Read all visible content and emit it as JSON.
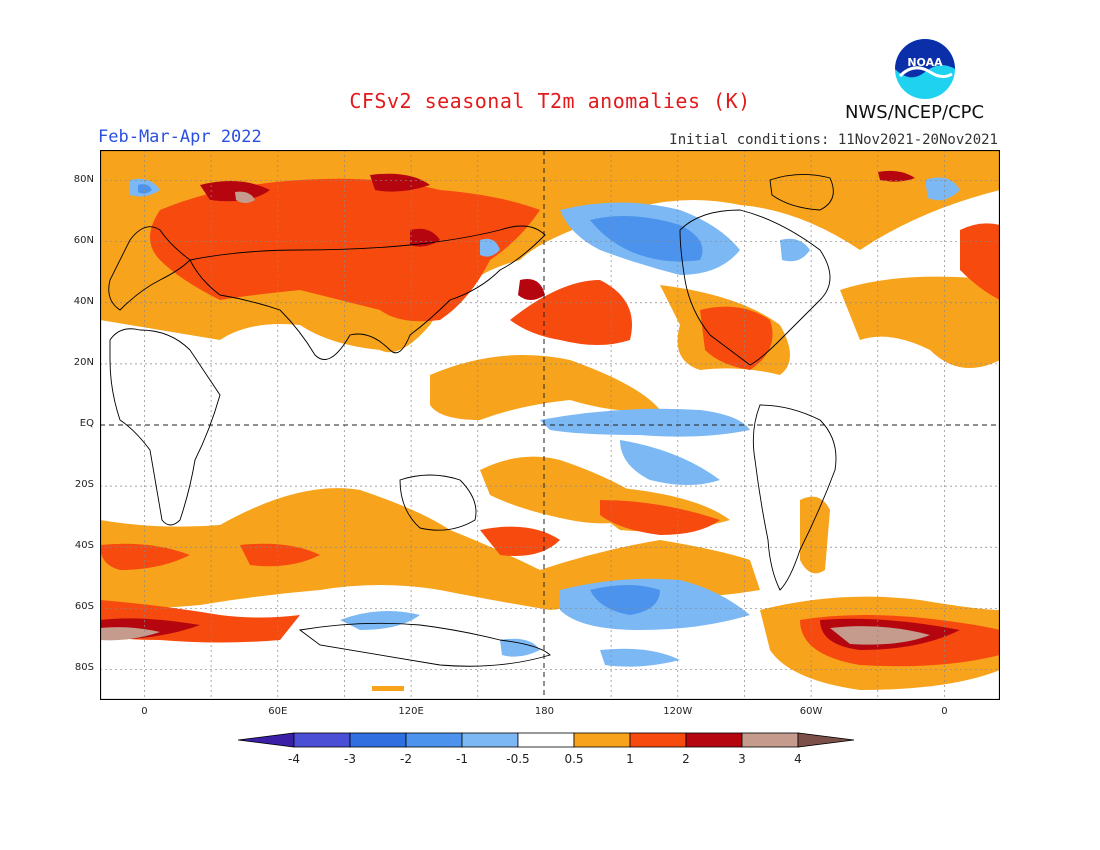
{
  "header": {
    "title": "CFSv2 seasonal T2m anomalies (K)",
    "season": "Feb-Mar-Apr 2022",
    "initial_conditions": "Initial conditions: 11Nov2021-20Nov2021",
    "organization": "NWS/NCEP/CPC",
    "logo_text": "NOAA"
  },
  "axes": {
    "lat_labels": [
      "80N",
      "60N",
      "40N",
      "20N",
      "EQ",
      "20S",
      "40S",
      "60S",
      "80S"
    ],
    "lat_values": [
      80,
      60,
      40,
      20,
      0,
      -20,
      -40,
      -60,
      -80
    ],
    "lon_labels": [
      "0",
      "60E",
      "120E",
      "180",
      "120W",
      "60W",
      "0"
    ],
    "lon_values": [
      0,
      60,
      120,
      180,
      240,
      300,
      360
    ],
    "lon_range": [
      -20,
      385
    ],
    "lat_range": [
      -90,
      90
    ]
  },
  "colorbar": {
    "labels": [
      "-4",
      "-3",
      "-2",
      "-1",
      "-0.5",
      "0.5",
      "1",
      "2",
      "3",
      "4"
    ],
    "colors": [
      "#3b1fa6",
      "#4a4fd6",
      "#2f6fe0",
      "#4b93ec",
      "#7cb8f4",
      "#ffffff",
      "#f7a31c",
      "#f74a0f",
      "#b5060f",
      "#c49b8c",
      "#7a5048"
    ]
  }
}
